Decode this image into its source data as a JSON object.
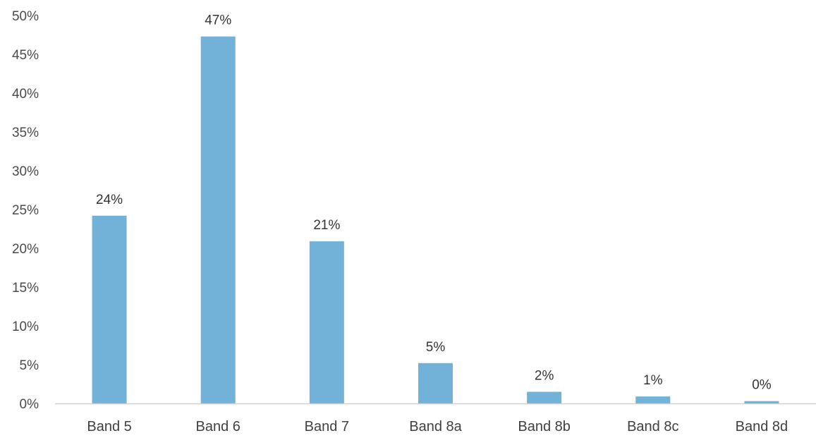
{
  "chart_data": {
    "type": "bar",
    "categories": [
      "Band 5",
      "Band 6",
      "Band 7",
      "Band 8a",
      "Band 8b",
      "Band 8c",
      "Band 8d"
    ],
    "values": [
      24.2,
      47.3,
      20.9,
      5.2,
      1.5,
      0.9,
      0.3
    ],
    "data_labels": [
      "24%",
      "47%",
      "21%",
      "5%",
      "2%",
      "1%",
      "0%"
    ],
    "yticks": [
      0,
      5,
      10,
      15,
      20,
      25,
      30,
      35,
      40,
      45,
      50
    ],
    "ytick_labels": [
      "0%",
      "5%",
      "10%",
      "15%",
      "20%",
      "25%",
      "30%",
      "35%",
      "40%",
      "45%",
      "50%"
    ],
    "ylim": [
      0,
      50
    ],
    "title": "",
    "xlabel": "",
    "ylabel": "",
    "grid": false,
    "legend": "none",
    "colors": {
      "bar": "#72b2d9",
      "axis": "#d0d0d0"
    }
  }
}
